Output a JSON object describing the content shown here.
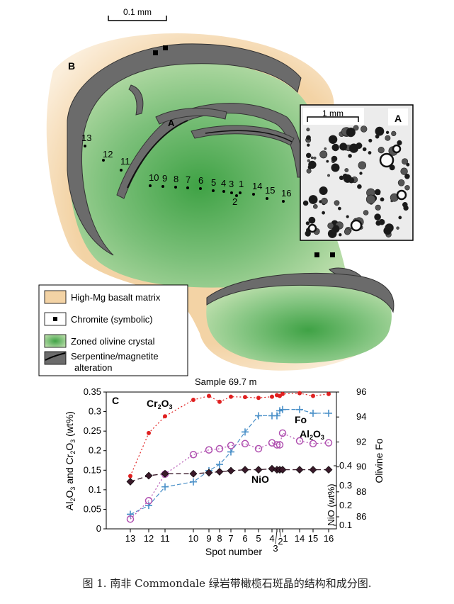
{
  "panel_b": {
    "panel_label": "B",
    "scale_label": "0.1 mm",
    "vein_label": "A",
    "spot_labels": [
      "13",
      "12",
      "11",
      "10",
      "9",
      "8",
      "7",
      "6",
      "5",
      "4",
      "3",
      "1",
      "2",
      "14",
      "15",
      "16"
    ],
    "sample_label": "Sample 69.7 m",
    "legend": {
      "matrix": "High-Mg basalt matrix",
      "chromite": "Chromite (symbolic)",
      "olivine": "Zoned olivine crystal",
      "serpentine_line1": "Serpentine/magnetite",
      "serpentine_line2": "alteration"
    },
    "colors": {
      "matrix": "#f3d3a5",
      "olivine": "#a9d79b",
      "olivine_core": "#3fa245",
      "serpentine": "#6b6b6b",
      "chromite": "#000000"
    }
  },
  "panel_a": {
    "panel_label": "A",
    "scale_label": "1 mm"
  },
  "panel_c": {
    "panel_label": "C",
    "left_axis_title": "Al2O3 and Cr2O3 (wt%)",
    "right_axis_outer_title": "Olivine Fo",
    "right_axis_inner_title": "NiO (wt%)",
    "x_axis_title": "Spot number",
    "series_labels": {
      "cr2o3": "Cr2O3",
      "fo": "Fo",
      "al2o3": "Al2O3",
      "nio": "NiO"
    }
  },
  "chart_data": {
    "type": "line",
    "xlabel": "Spot number",
    "ylabel": "Al2O3 and Cr2O3 (wt%)",
    "x_tick_labels": [
      "13",
      "12",
      "11",
      "10",
      "9",
      "8",
      "7",
      "6",
      "5",
      "4",
      "3",
      "2",
      "1",
      "14",
      "15",
      "16"
    ],
    "ylim": [
      0,
      0.35
    ],
    "y_ticks": [
      "0",
      "0.05",
      "0.1",
      "0.15",
      "0.2",
      "0.25",
      "0.3",
      "0.35"
    ],
    "right_fo_axis": {
      "label": "Olivine Fo",
      "range": [
        85,
        96
      ],
      "ticks": [
        "86",
        "88",
        "90",
        "92",
        "94",
        "96"
      ]
    },
    "right_nio_axis": {
      "label": "NiO (wt%)",
      "range": [
        0.05,
        0.5
      ],
      "ticks": [
        "0.1",
        "0.2",
        "0.3",
        "0.4"
      ]
    },
    "series": [
      {
        "name": "Cr2O3",
        "axis": "left",
        "color": "#e02020",
        "style": "dotted-dots",
        "values": [
          0.135,
          0.245,
          0.288,
          0.33,
          0.34,
          0.325,
          0.338,
          0.337,
          0.335,
          0.338,
          0.342,
          0.34,
          0.345,
          0.347,
          0.34,
          0.345
        ]
      },
      {
        "name": "Fo",
        "axis": "fo",
        "color": "#4a90c8",
        "style": "dash-plus",
        "values": [
          86.2,
          86.9,
          88.4,
          88.8,
          89.7,
          90.2,
          91.2,
          92.8,
          94.1,
          94.1,
          94.1,
          94.5,
          94.6,
          94.6,
          94.3,
          94.3
        ]
      },
      {
        "name": "Al2O3",
        "axis": "left",
        "color": "#b050b0",
        "style": "dotted-circles",
        "values": [
          0.025,
          0.072,
          0.14,
          0.19,
          0.202,
          0.205,
          0.213,
          0.218,
          0.205,
          0.22,
          0.215,
          0.215,
          0.245,
          0.225,
          0.218,
          0.22
        ]
      },
      {
        "name": "NiO",
        "axis": "nio",
        "color": "#3a1a2a",
        "style": "dashed-diamonds",
        "values": [
          0.32,
          0.35,
          0.36,
          0.36,
          0.365,
          0.37,
          0.375,
          0.38,
          0.38,
          0.385,
          0.38,
          0.38,
          0.38,
          0.38,
          0.38,
          0.38
        ]
      }
    ]
  },
  "caption": "图 1.   南非 Commondale 绿岩带橄榄石斑晶的结构和成分图."
}
